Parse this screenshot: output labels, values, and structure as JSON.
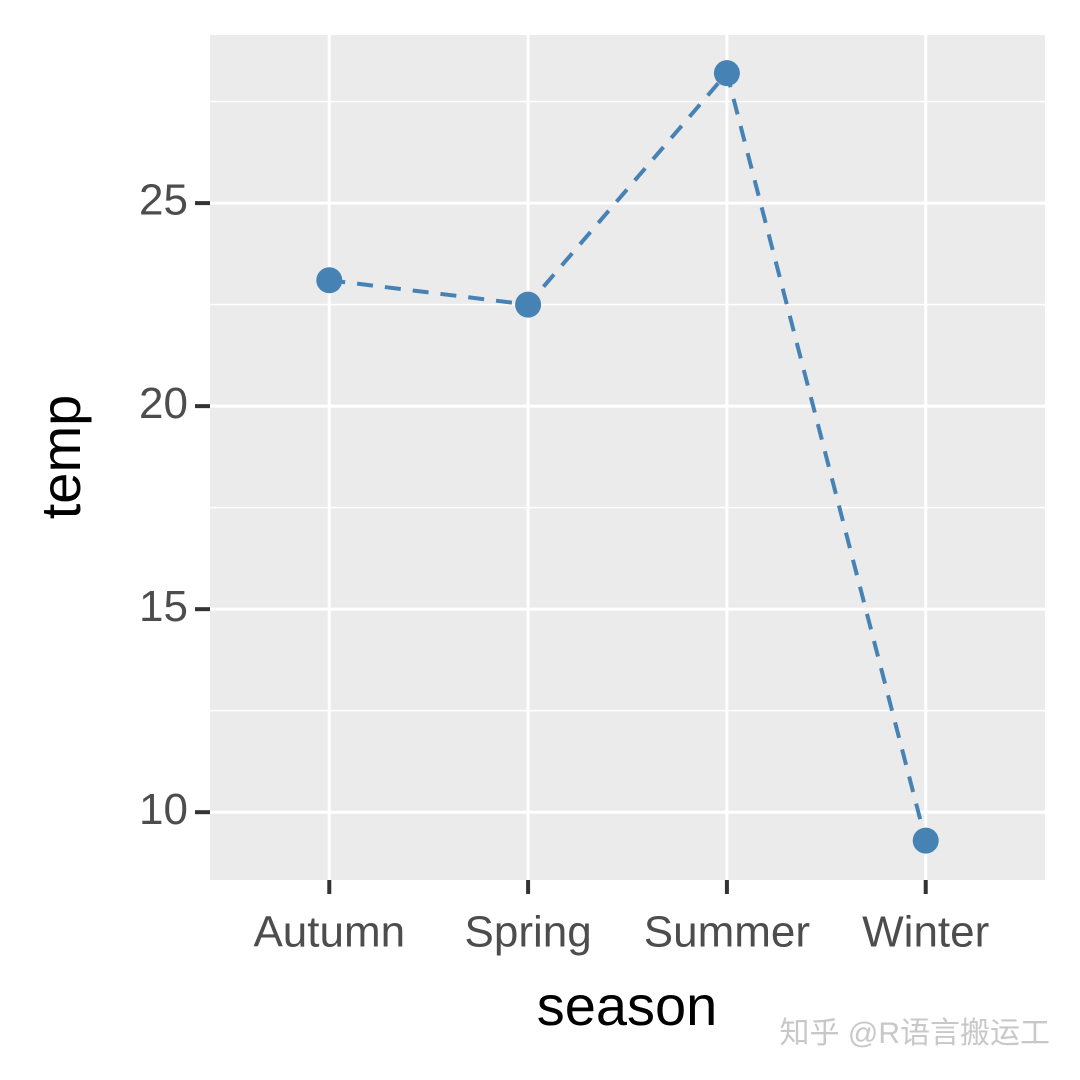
{
  "chart_data": {
    "type": "line",
    "x_label": "season",
    "y_label": "temp",
    "categories": [
      "Autumn",
      "Spring",
      "Summer",
      "Winter"
    ],
    "series": [
      {
        "color": "#4682b4",
        "values": [
          23.1,
          22.5,
          28.2,
          9.3
        ]
      }
    ],
    "ylim": [
      8.33,
      29.14
    ],
    "yticks": [
      10,
      15,
      20,
      25
    ],
    "minor_yticks": [
      12.5,
      17.5,
      22.5,
      27.5
    ],
    "line_style": "dashed",
    "grid": true
  },
  "watermark": "知乎 @R语言搬运工"
}
